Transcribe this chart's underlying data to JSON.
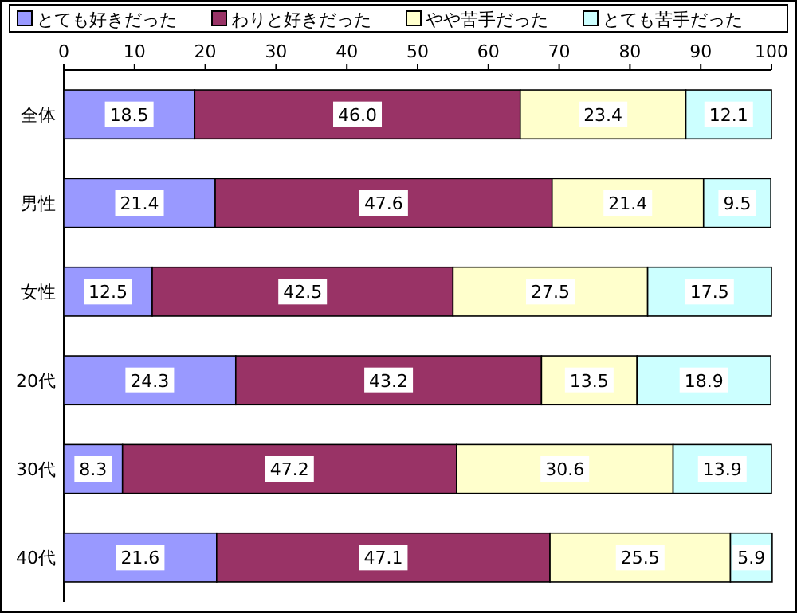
{
  "chart_data": {
    "type": "bar",
    "orientation": "horizontal",
    "stacked": true,
    "legend": "top",
    "grid": false,
    "categories": [
      "全体",
      "男性",
      "女性",
      "20代",
      "30代",
      "40代"
    ],
    "xlim": [
      0,
      100
    ],
    "xticks": [
      0,
      10,
      20,
      30,
      40,
      50,
      60,
      70,
      80,
      90,
      100
    ],
    "series": [
      {
        "name": "とても好きだった",
        "color": "#9999ff",
        "values": [
          18.5,
          21.4,
          12.5,
          24.3,
          8.3,
          21.6
        ],
        "value_labels": [
          "18.5",
          "21.4",
          "12.5",
          "24.3",
          "8.3",
          "21.6"
        ]
      },
      {
        "name": "わりと好きだった",
        "color": "#993366",
        "values": [
          46.0,
          47.6,
          42.5,
          43.2,
          47.2,
          47.1
        ],
        "value_labels": [
          "46.0",
          "47.6",
          "42.5",
          "43.2",
          "47.2",
          "47.1"
        ]
      },
      {
        "name": "やや苦手だった",
        "color": "#ffffcc",
        "values": [
          23.4,
          21.4,
          27.5,
          13.5,
          30.6,
          25.5
        ],
        "value_labels": [
          "23.4",
          "21.4",
          "27.5",
          "13.5",
          "30.6",
          "25.5"
        ]
      },
      {
        "name": "とても苦手だった",
        "color": "#ccffff",
        "values": [
          12.1,
          9.5,
          17.5,
          18.9,
          13.9,
          5.9
        ],
        "value_labels": [
          "12.1",
          "9.5",
          "17.5",
          "18.9",
          "13.9",
          "5.9"
        ]
      }
    ]
  }
}
